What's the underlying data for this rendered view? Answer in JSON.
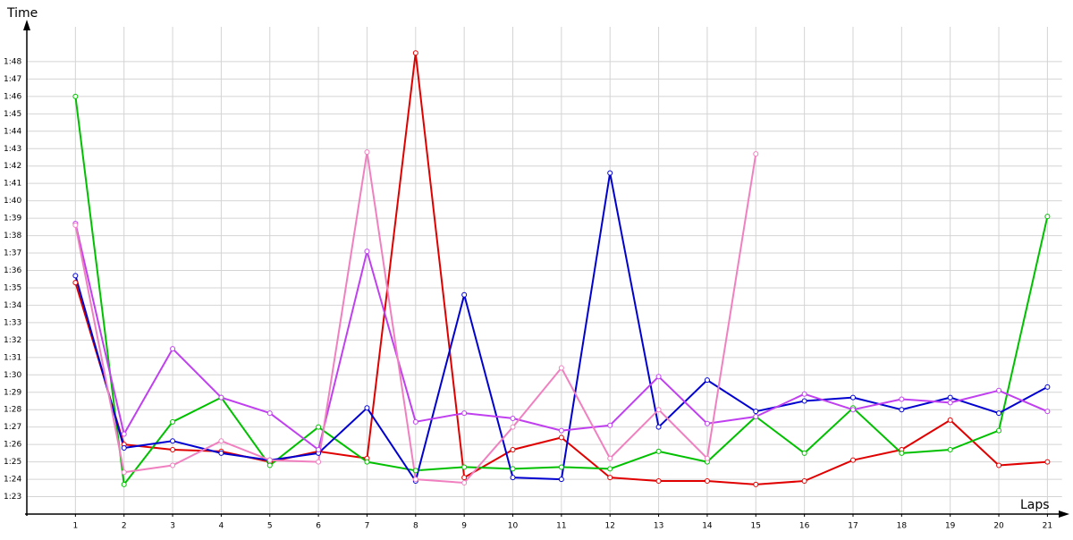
{
  "chart_data": {
    "type": "line",
    "x_label": "Laps",
    "y_label": "Time",
    "x": [
      1,
      2,
      3,
      4,
      5,
      6,
      7,
      8,
      9,
      10,
      11,
      12,
      13,
      14,
      15,
      16,
      17,
      18,
      19,
      20,
      21
    ],
    "xlim": [
      0,
      21.3
    ],
    "xticks": [
      1,
      2,
      3,
      4,
      5,
      6,
      7,
      8,
      9,
      10,
      11,
      12,
      13,
      14,
      15,
      16,
      17,
      18,
      19,
      20,
      21
    ],
    "ylim": [
      82,
      110
    ],
    "yticks": [
      {
        "value": 83,
        "label": "1:23"
      },
      {
        "value": 84,
        "label": "1:24"
      },
      {
        "value": 85,
        "label": "1:25"
      },
      {
        "value": 86,
        "label": "1:26"
      },
      {
        "value": 87,
        "label": "1:27"
      },
      {
        "value": 88,
        "label": "1:28"
      },
      {
        "value": 89,
        "label": "1:29"
      },
      {
        "value": 90,
        "label": "1:30"
      },
      {
        "value": 91,
        "label": "1:31"
      },
      {
        "value": 92,
        "label": "1:32"
      },
      {
        "value": 93,
        "label": "1:33"
      },
      {
        "value": 94,
        "label": "1:34"
      },
      {
        "value": 95,
        "label": "1:35"
      },
      {
        "value": 96,
        "label": "1:36"
      },
      {
        "value": 97,
        "label": "1:37"
      },
      {
        "value": 98,
        "label": "1:38"
      },
      {
        "value": 99,
        "label": "1:39"
      },
      {
        "value": 100,
        "label": "1:40"
      },
      {
        "value": 101,
        "label": "1:41"
      },
      {
        "value": 102,
        "label": "1:42"
      },
      {
        "value": 103,
        "label": "1:43"
      },
      {
        "value": 104,
        "label": "1:44"
      },
      {
        "value": 105,
        "label": "1:45"
      },
      {
        "value": 106,
        "label": "1:46"
      },
      {
        "value": 107,
        "label": "1:47"
      },
      {
        "value": 108,
        "label": "1:48"
      }
    ],
    "grid": true,
    "series": [
      {
        "color": "#e00000",
        "values": [
          95.3,
          86.0,
          85.7,
          85.6,
          85.0,
          85.6,
          85.2,
          108.5,
          84.1,
          85.7,
          86.4,
          84.1,
          83.9,
          83.9,
          83.7,
          83.9,
          85.1,
          85.7,
          87.4,
          84.8,
          85.0
        ]
      },
      {
        "color": "#00c000",
        "values": [
          106.0,
          83.7,
          87.3,
          88.7,
          84.8,
          87.0,
          85.0,
          84.5,
          84.7,
          84.6,
          84.7,
          84.6,
          85.6,
          85.0,
          87.6,
          85.5,
          88.1,
          85.5,
          85.7,
          86.8,
          99.1
        ]
      },
      {
        "color": "#0000d0",
        "values": [
          95.7,
          85.8,
          86.2,
          85.5,
          85.1,
          85.5,
          88.1,
          83.9,
          94.6,
          84.1,
          84.0,
          101.6,
          87.0,
          89.7,
          87.9,
          88.5,
          88.7,
          88.0,
          88.7,
          87.8,
          89.3
        ]
      },
      {
        "color": "#c040f0",
        "values": [
          98.7,
          86.6,
          91.5,
          88.7,
          87.8,
          85.7,
          97.1,
          87.3,
          87.8,
          87.5,
          86.8,
          87.1,
          89.9,
          87.2,
          87.6,
          88.9,
          88.0,
          88.6,
          88.4,
          89.1,
          87.9
        ]
      },
      {
        "color": "#f080c0",
        "values": [
          98.6,
          84.4,
          84.8,
          86.2,
          85.1,
          85.0,
          102.8,
          84.0,
          83.8,
          87.0,
          90.4,
          85.2,
          88.0,
          85.2,
          102.7,
          null,
          null,
          null,
          null,
          null,
          null
        ]
      }
    ]
  }
}
